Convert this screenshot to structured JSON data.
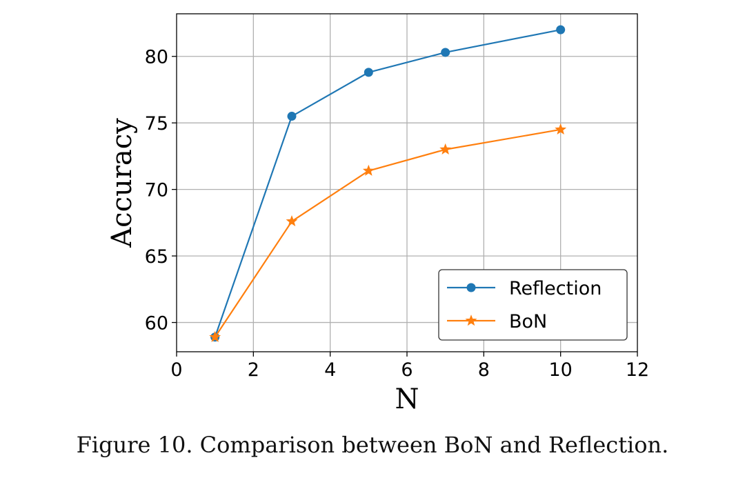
{
  "caption": "Figure 10. Comparison between BoN and Reflection.",
  "chart_data": {
    "type": "line",
    "xlabel": "N",
    "ylabel": "Accuracy",
    "xlim": [
      0,
      12
    ],
    "ylim": [
      57.8,
      83.2
    ],
    "xticks": [
      0,
      2,
      4,
      6,
      8,
      10,
      12
    ],
    "yticks": [
      60,
      65,
      70,
      75,
      80
    ],
    "grid": true,
    "legend_position": "lower-right",
    "series": [
      {
        "name": "Reflection",
        "color": "#1f77b4",
        "marker": "circle",
        "x": [
          1,
          3,
          5,
          7,
          10
        ],
        "y": [
          58.9,
          75.5,
          78.8,
          80.3,
          82.0
        ]
      },
      {
        "name": "BoN",
        "color": "#ff7f0e",
        "marker": "star",
        "x": [
          1,
          3,
          5,
          7,
          10
        ],
        "y": [
          58.9,
          67.6,
          71.4,
          73.0,
          74.5
        ]
      }
    ]
  }
}
